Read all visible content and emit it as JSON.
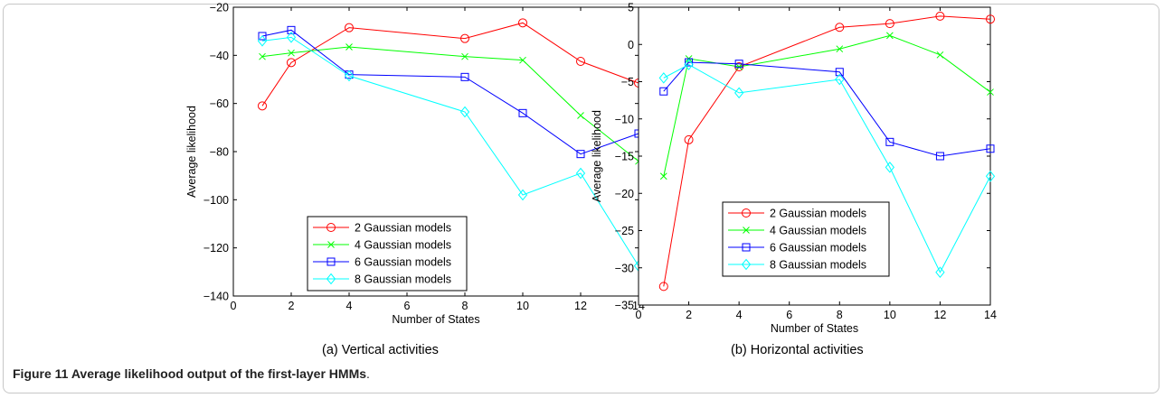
{
  "caption": {
    "label": "Figure 11",
    "text": "Average likelihood output of the first-layer HMMs",
    "end": "."
  },
  "chart_data": [
    {
      "type": "line",
      "subcaption": "(a)  Vertical activities",
      "xlabel": "Number of States",
      "ylabel": "Average likelihood",
      "xlim": [
        0,
        14
      ],
      "ylim": [
        -140,
        -20
      ],
      "xticks": [
        0,
        2,
        4,
        6,
        8,
        10,
        12,
        14
      ],
      "yticks": [
        -140,
        -120,
        -100,
        -80,
        -60,
        -40,
        -20
      ],
      "x": [
        1,
        2,
        4,
        8,
        10,
        12,
        14
      ],
      "legend_position": "lower-right",
      "series": [
        {
          "name": "2 Gaussian models",
          "color": "#ff0000",
          "marker": "circle",
          "values": [
            -61,
            -43,
            -28.5,
            -33,
            -26.5,
            -42.5,
            -51.5
          ]
        },
        {
          "name": "4 Gaussian models",
          "color": "#00ff00",
          "marker": "x",
          "values": [
            -40.5,
            -39,
            -36.5,
            -40.5,
            -42,
            -65,
            -84
          ]
        },
        {
          "name": "6 Gaussian models",
          "color": "#0000ff",
          "marker": "square",
          "values": [
            -32,
            -29.5,
            -48,
            -49,
            -64,
            -81,
            -72.5
          ]
        },
        {
          "name": "8 Gaussian models",
          "color": "#00ffff",
          "marker": "diamond",
          "values": [
            -34,
            -32.5,
            -48.5,
            -63.5,
            -98,
            -89,
            -127.5
          ]
        }
      ]
    },
    {
      "type": "line",
      "subcaption": "(b)  Horizontal activities",
      "xlabel": "Number of States",
      "ylabel": "Average likelihood",
      "xlim": [
        0,
        14
      ],
      "ylim": [
        -35,
        5
      ],
      "xticks": [
        0,
        2,
        4,
        6,
        8,
        10,
        12,
        14
      ],
      "yticks": [
        -35,
        -30,
        -25,
        -20,
        -15,
        -10,
        -5,
        0,
        5
      ],
      "x": [
        1,
        2,
        4,
        8,
        10,
        12,
        14
      ],
      "legend_position": "lower-right",
      "series": [
        {
          "name": "2 Gaussian models",
          "color": "#ff0000",
          "marker": "circle",
          "values": [
            -32.5,
            -12.8,
            -3,
            2.3,
            2.8,
            3.8,
            3.4
          ]
        },
        {
          "name": "4 Gaussian models",
          "color": "#00ff00",
          "marker": "x",
          "values": [
            -17.7,
            -1.9,
            -3,
            -0.6,
            1.2,
            -1.4,
            -6.4
          ]
        },
        {
          "name": "6 Gaussian models",
          "color": "#0000ff",
          "marker": "square",
          "values": [
            -6.3,
            -2.4,
            -2.6,
            -3.7,
            -13.1,
            -15,
            -14
          ]
        },
        {
          "name": "8 Gaussian models",
          "color": "#00ffff",
          "marker": "diamond",
          "values": [
            -4.5,
            -2.7,
            -6.5,
            -4.7,
            -16.5,
            -30.6,
            -17.7
          ]
        }
      ]
    }
  ]
}
